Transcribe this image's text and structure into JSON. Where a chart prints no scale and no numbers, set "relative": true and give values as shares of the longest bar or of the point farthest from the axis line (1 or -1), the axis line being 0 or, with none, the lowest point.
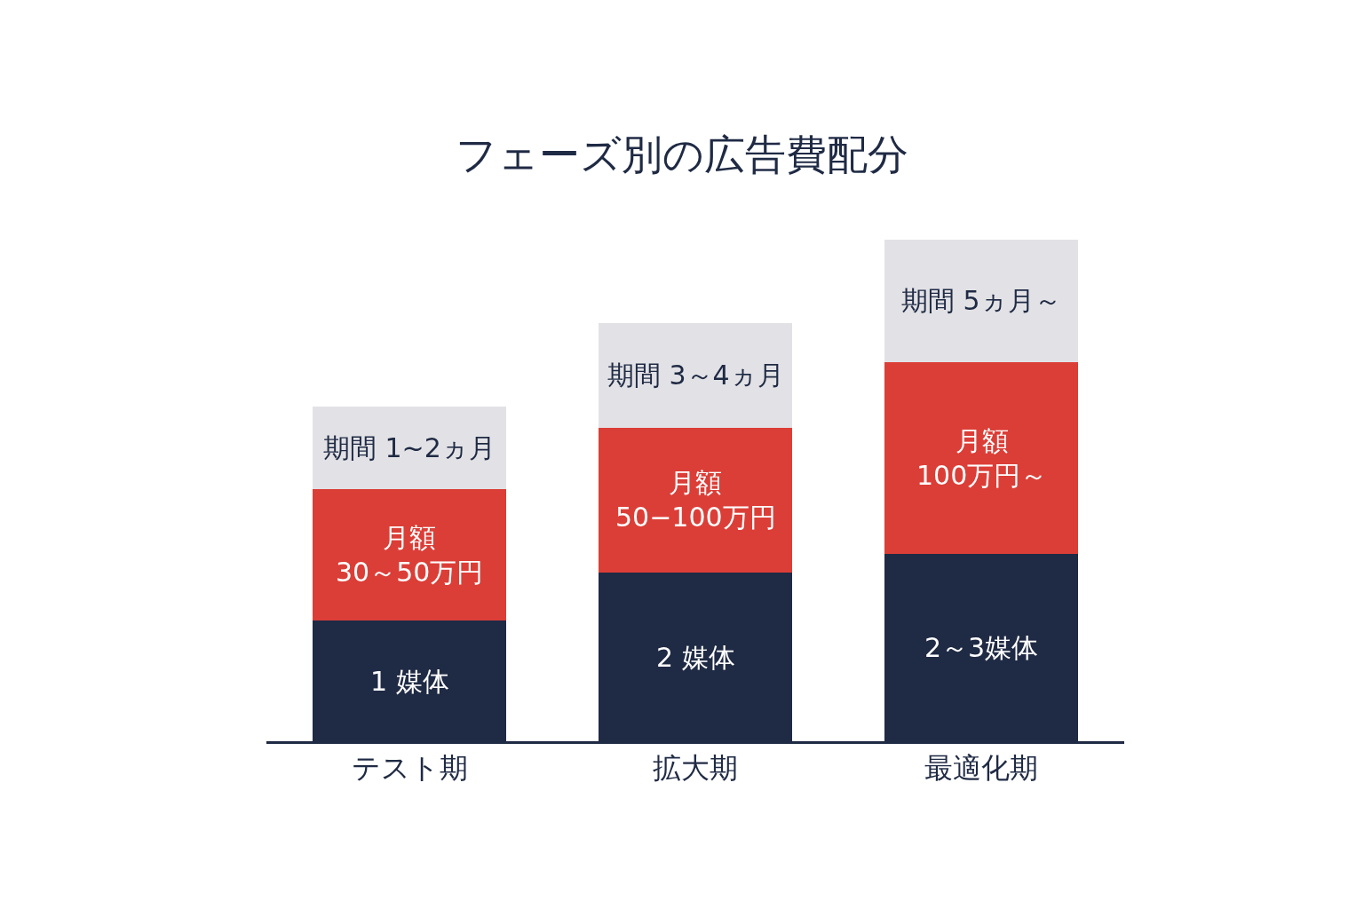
{
  "chart_data": {
    "type": "bar",
    "title": "フェーズ別の広告費配分",
    "categories": [
      "テスト期",
      "拡大期",
      "最適化期"
    ],
    "stacked": true,
    "relative": true,
    "series": [
      {
        "color": "#1f2a44",
        "values": [
          0.24,
          0.336,
          0.374
        ]
      },
      {
        "color": "#db3e37",
        "values": [
          0.263,
          0.289,
          0.382
        ]
      },
      {
        "color": "#e2e2e6",
        "values": [
          0.164,
          0.209,
          0.244
        ]
      }
    ],
    "annotations": [
      "1 媒体",
      "2 媒体",
      "2～3媒体",
      "月額\n30～50万円",
      "月額\n50−100万円",
      "月額\n100万円～",
      "期間 1~2ヵ月",
      "期間 3～4ヵ月",
      "期間 5ヵ月～"
    ]
  }
}
